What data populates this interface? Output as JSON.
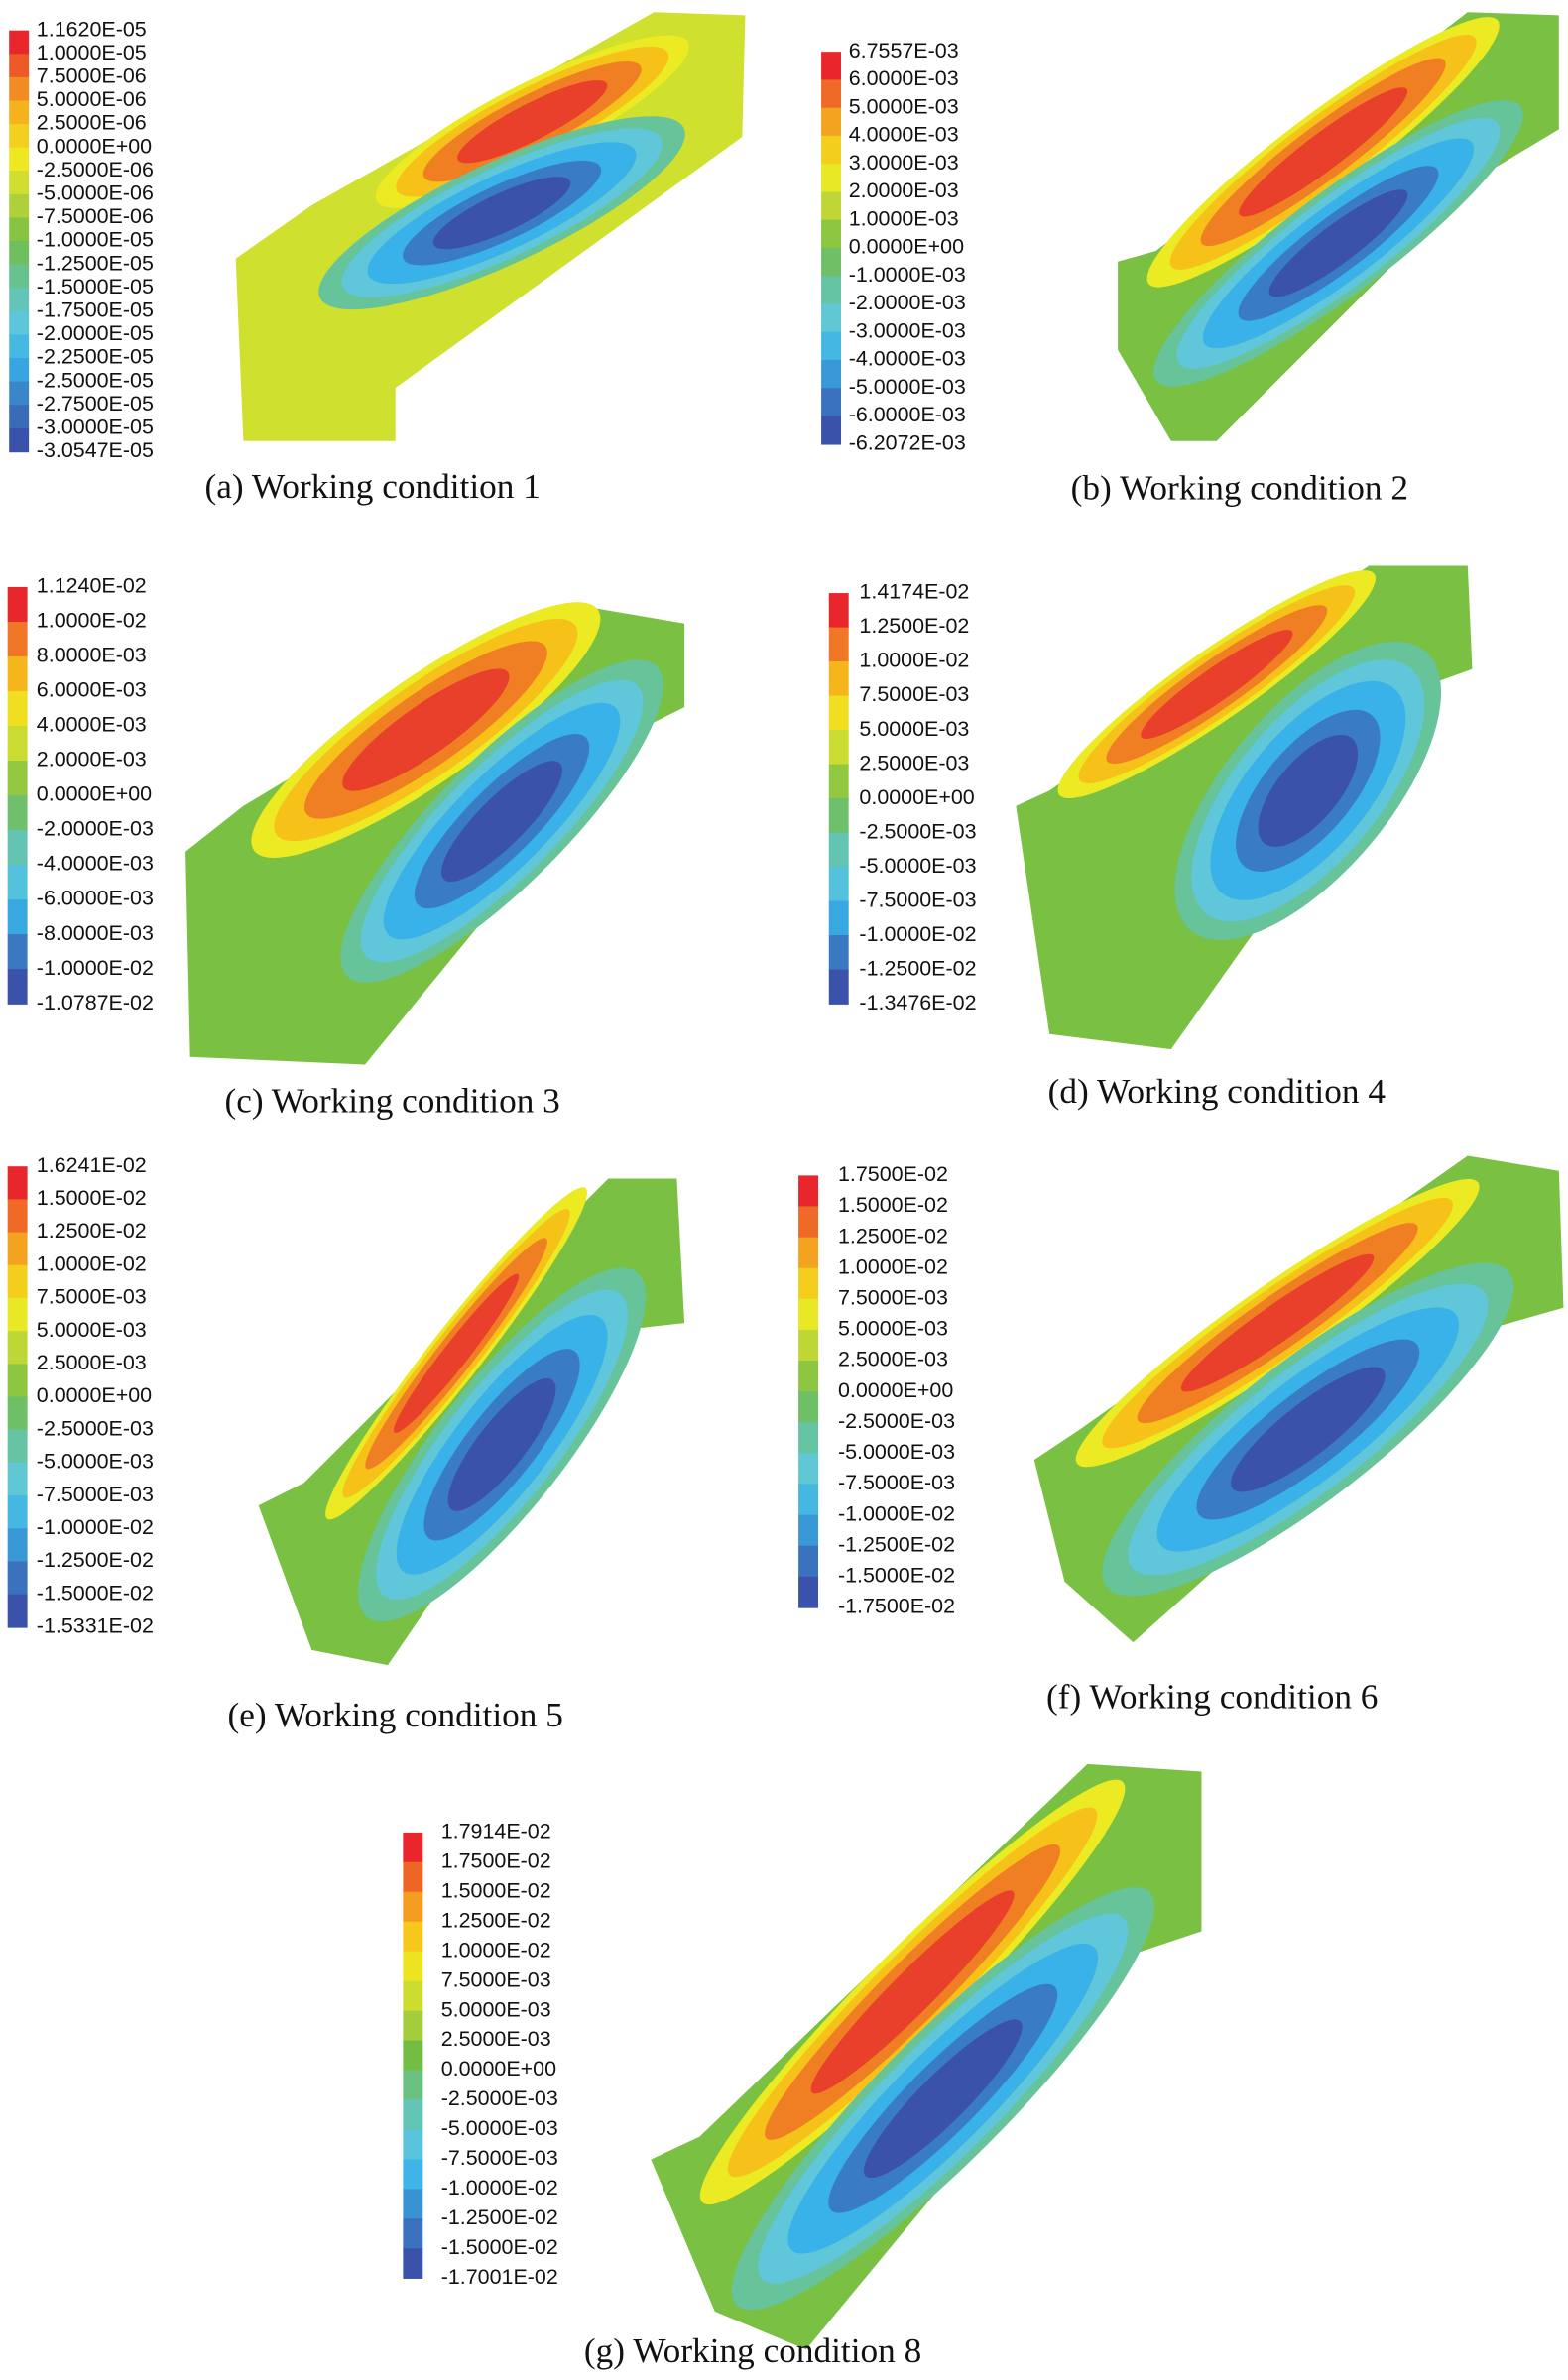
{
  "panels": [
    {
      "caption": "(a) Working condition 1",
      "legend": [
        "1.1620E-05",
        "1.0000E-05",
        "7.5000E-06",
        "5.0000E-06",
        "2.5000E-06",
        "0.0000E+00",
        "-2.5000E-06",
        "-5.0000E-06",
        "-7.5000E-06",
        "-1.0000E-05",
        "-1.2500E-05",
        "-1.5000E-05",
        "-1.7500E-05",
        "-2.0000E-05",
        "-2.2500E-05",
        "-2.5000E-05",
        "-2.7500E-05",
        "-3.0000E-05",
        "-3.0547E-05"
      ]
    },
    {
      "caption": "(b) Working condition 2",
      "legend": [
        "6.7557E-03",
        "6.0000E-03",
        "5.0000E-03",
        "4.0000E-03",
        "3.0000E-03",
        "2.0000E-03",
        "1.0000E-03",
        "0.0000E+00",
        "-1.0000E-03",
        "-2.0000E-03",
        "-3.0000E-03",
        "-4.0000E-03",
        "-5.0000E-03",
        "-6.0000E-03",
        "-6.2072E-03"
      ]
    },
    {
      "caption": "(c) Working condition 3",
      "legend": [
        "1.1240E-02",
        "1.0000E-02",
        "8.0000E-03",
        "6.0000E-03",
        "4.0000E-03",
        "2.0000E-03",
        "0.0000E+00",
        "-2.0000E-03",
        "-4.0000E-03",
        "-6.0000E-03",
        "-8.0000E-03",
        "-1.0000E-02",
        "-1.0787E-02"
      ]
    },
    {
      "caption": "(d) Working condition 4",
      "legend": [
        "1.4174E-02",
        "1.2500E-02",
        "1.0000E-02",
        "7.5000E-03",
        "5.0000E-03",
        "2.5000E-03",
        "0.0000E+00",
        "-2.5000E-03",
        "-5.0000E-03",
        "-7.5000E-03",
        "-1.0000E-02",
        "-1.2500E-02",
        "-1.3476E-02"
      ]
    },
    {
      "caption": "(e) Working condition 5",
      "legend": [
        "1.6241E-02",
        "1.5000E-02",
        "1.2500E-02",
        "1.0000E-02",
        "7.5000E-03",
        "5.0000E-03",
        "2.5000E-03",
        "0.0000E+00",
        "-2.5000E-03",
        "-5.0000E-03",
        "-7.5000E-03",
        "-1.0000E-02",
        "-1.2500E-02",
        "-1.5000E-02",
        "-1.5331E-02"
      ]
    },
    {
      "caption": "(f) Working condition 6",
      "legend": [
        "1.7500E-02",
        "1.5000E-02",
        "1.2500E-02",
        "1.0000E-02",
        "7.5000E-03",
        "5.0000E-03",
        "2.5000E-03",
        "0.0000E+00",
        "-2.5000E-03",
        "-5.0000E-03",
        "-7.5000E-03",
        "-1.0000E-02",
        "-1.2500E-02",
        "-1.5000E-02",
        "-1.7500E-02"
      ]
    },
    {
      "caption": "(g) Working condition 8",
      "legend": [
        "1.7914E-02",
        "1.7500E-02",
        "1.5000E-02",
        "1.2500E-02",
        "1.0000E-02",
        "7.5000E-03",
        "5.0000E-03",
        "2.5000E-03",
        "0.0000E+00",
        "-2.5000E-03",
        "-5.0000E-03",
        "-7.5000E-03",
        "-1.0000E-02",
        "-1.2500E-02",
        "-1.5000E-02",
        "-1.7001E-02"
      ]
    }
  ]
}
